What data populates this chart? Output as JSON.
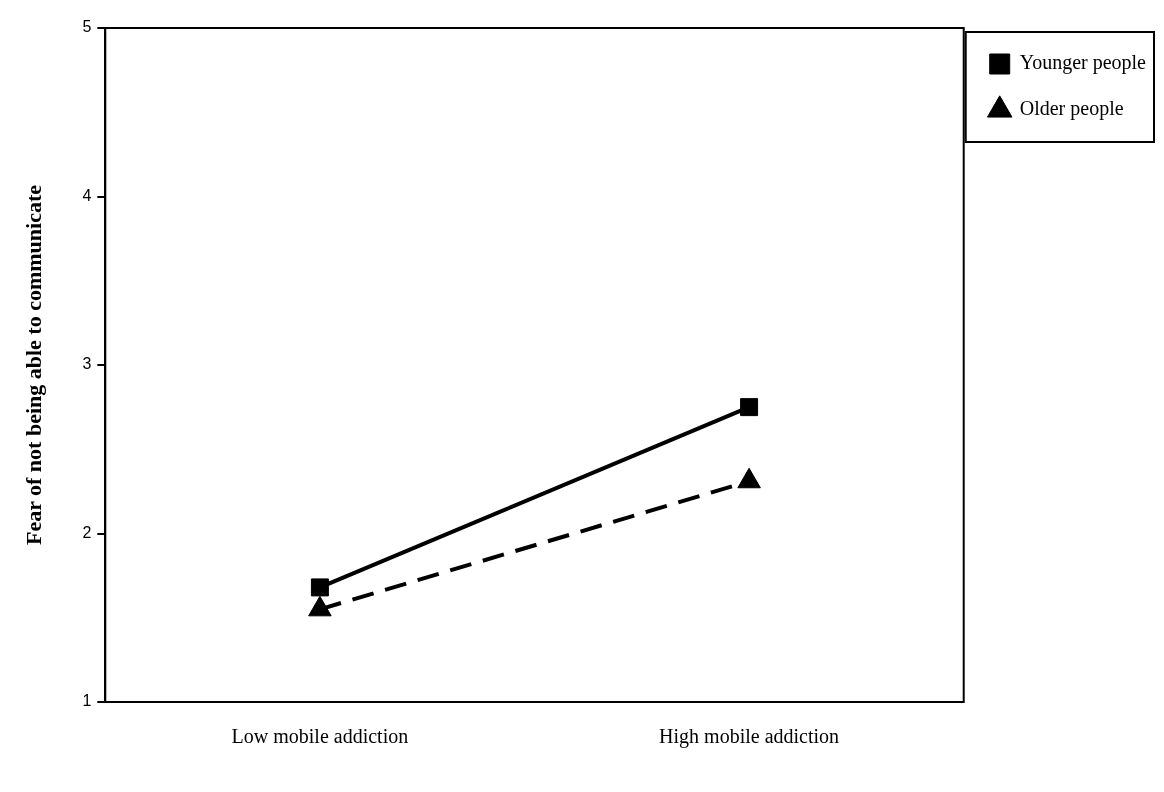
{
  "chart_data": {
    "type": "line",
    "ylabel": "Fear of not being able to communicate",
    "categories": [
      "Low mobile addiction",
      "High mobile addiction"
    ],
    "series": [
      {
        "name": "Younger people",
        "color": "#000000",
        "values": [
          1.68,
          2.75
        ],
        "marker": "square",
        "line_style": "solid"
      },
      {
        "name": "Older people",
        "color": "#000000",
        "values": [
          1.55,
          2.31
        ],
        "marker": "triangle",
        "line_style": "dashed"
      }
    ],
    "ylim": [
      1,
      5
    ],
    "yticks": [
      1,
      2,
      3,
      4,
      5
    ],
    "grid": false,
    "legend": "top right"
  }
}
